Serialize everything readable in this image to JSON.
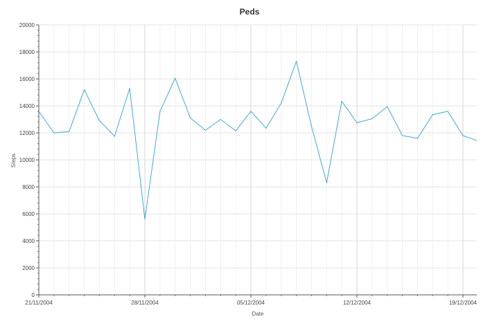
{
  "chart_data": {
    "type": "line",
    "title": "Peds",
    "xlabel": "Date",
    "ylabel": "Steps",
    "ylim": [
      0,
      20000
    ],
    "y_ticks": [
      0,
      2000,
      4000,
      6000,
      8000,
      10000,
      12000,
      14000,
      16000,
      18000,
      20000
    ],
    "x_range": [
      "2004-11-21",
      "2004-12-19"
    ],
    "x_tick_labels": [
      {
        "date": "2004-11-21",
        "label": "21/11/2004"
      },
      {
        "date": "2004-11-28",
        "label": "28/11/2004"
      },
      {
        "date": "2004-12-05",
        "label": "05/12/2004"
      },
      {
        "date": "2004-12-12",
        "label": "12/12/2004"
      },
      {
        "date": "2004-12-19",
        "label": "19/12/2004"
      }
    ],
    "grid": true,
    "line_color": "#3fa9d8",
    "series": [
      {
        "points": [
          {
            "x": "2004-11-21",
            "y": 13600
          },
          {
            "x": "2004-11-22",
            "y": 12000
          },
          {
            "x": "2004-11-23",
            "y": 12100
          },
          {
            "x": "2004-11-24",
            "y": 15200
          },
          {
            "x": "2004-11-25",
            "y": 12900
          },
          {
            "x": "2004-11-26",
            "y": 11750
          },
          {
            "x": "2004-11-27",
            "y": 15300
          },
          {
            "x": "2004-11-28",
            "y": 5600
          },
          {
            "x": "2004-11-29",
            "y": 13600
          },
          {
            "x": "2004-11-30",
            "y": 16050
          },
          {
            "x": "2004-12-01",
            "y": 13100
          },
          {
            "x": "2004-12-02",
            "y": 12200
          },
          {
            "x": "2004-12-03",
            "y": 13000
          },
          {
            "x": "2004-12-04",
            "y": 12150
          },
          {
            "x": "2004-12-05",
            "y": 13600
          },
          {
            "x": "2004-12-06",
            "y": 12350
          },
          {
            "x": "2004-12-07",
            "y": 14200
          },
          {
            "x": "2004-12-08",
            "y": 17300
          },
          {
            "x": "2004-12-09",
            "y": 12500
          },
          {
            "x": "2004-12-10",
            "y": 8300
          },
          {
            "x": "2004-12-11",
            "y": 14350
          },
          {
            "x": "2004-12-12",
            "y": 12750
          },
          {
            "x": "2004-12-13",
            "y": 13050
          },
          {
            "x": "2004-12-14",
            "y": 13950
          },
          {
            "x": "2004-12-15",
            "y": 11800
          },
          {
            "x": "2004-12-16",
            "y": 11600
          },
          {
            "x": "2004-12-17",
            "y": 13350
          },
          {
            "x": "2004-12-18",
            "y": 13600
          },
          {
            "x": "2004-12-19",
            "y": 11800
          },
          {
            "x": "2004-12-20",
            "y": 11400
          }
        ]
      }
    ]
  }
}
